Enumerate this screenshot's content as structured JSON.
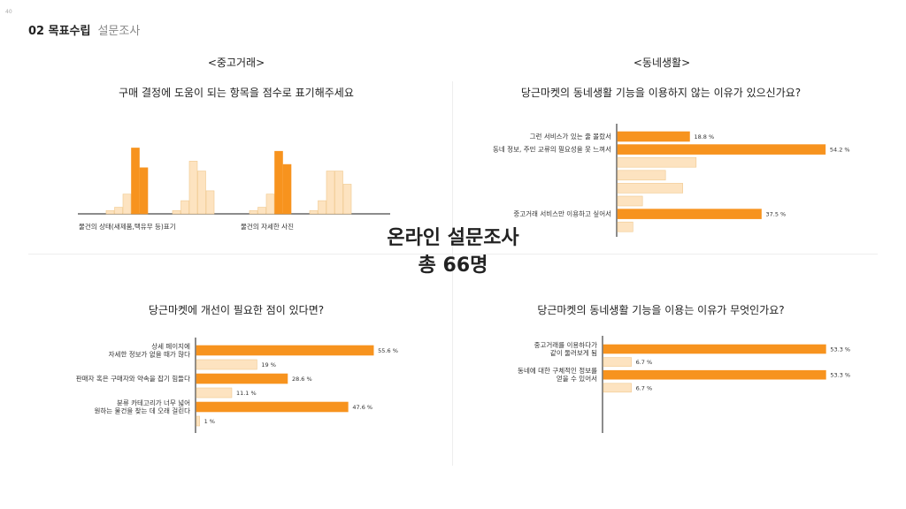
{
  "page_number": "40",
  "header": {
    "title": "02 목표수립",
    "subtitle": "설문조사"
  },
  "sections": {
    "left": "<중고거래>",
    "right": "<동네생활>"
  },
  "center": {
    "line1": "온라인 설문조사",
    "line2": "총 66명"
  },
  "colors": {
    "primary": "#f7931e",
    "light": "#fde3c0",
    "light_border": "#f0c88e",
    "axis": "#666666"
  },
  "chart_data": [
    {
      "type": "bar",
      "title": "구매 결정에 도움이 되는 항목을 점수로 표기해주세요",
      "categories": [
        "물건의 상태(새제품,택유무 등)표기",
        "",
        "물건의 자세한 사진",
        ""
      ],
      "series_values": [
        [
          1,
          2,
          6,
          20,
          14
        ],
        [
          1,
          4,
          16,
          13,
          7
        ],
        [
          1,
          2,
          6,
          19,
          15
        ],
        [
          1,
          4,
          13,
          13,
          9
        ]
      ],
      "highlight": [
        3,
        4
      ],
      "group_colors": [
        "primary",
        "light",
        "primary",
        "light"
      ],
      "ylim": [
        0,
        22
      ]
    },
    {
      "type": "bar",
      "orientation": "horizontal",
      "title": "당근마켓의 동네생활 기능을 이용하지 않는 이유가 있으신가요?",
      "rows": [
        {
          "label": "그런 서비스가 있는 줄 몰랐서",
          "value": 18.8,
          "value_label": "18.8 %",
          "highlight": true
        },
        {
          "label": "동네 정보, 주민 교류의 필요성을 못 느껴서",
          "value": 54.2,
          "value_label": "54.2 %",
          "highlight": true
        },
        {
          "label": "",
          "value": 20.5,
          "value_label": "",
          "highlight": false
        },
        {
          "label": "",
          "value": 12.5,
          "value_label": "",
          "highlight": false
        },
        {
          "label": "",
          "value": 17.0,
          "value_label": "",
          "highlight": false
        },
        {
          "label": "",
          "value": 6.5,
          "value_label": "",
          "highlight": false
        },
        {
          "label": "중고거래 서비스만 이용하고 싶어서",
          "value": 37.5,
          "value_label": "37.5 %",
          "highlight": true
        },
        {
          "label": "",
          "value": 4.0,
          "value_label": "",
          "highlight": false
        }
      ],
      "xlim": [
        0,
        60
      ]
    },
    {
      "type": "bar",
      "orientation": "horizontal",
      "title": "당근마켓에 개선이 필요한 점이 있다면?",
      "rows": [
        {
          "label": [
            "상세 페이지에",
            "자세한 정보가 없을 때가 많다"
          ],
          "value": 55.6,
          "value_label": "55.6 %",
          "highlight": true
        },
        {
          "label": [],
          "value": 19,
          "value_label": "19 %",
          "highlight": false
        },
        {
          "label": [
            "판매자 혹은 구매자와 약속을 잡기 힘들다"
          ],
          "value": 28.6,
          "value_label": "28.6 %",
          "highlight": true
        },
        {
          "label": [],
          "value": 11.1,
          "value_label": "11.1 %",
          "highlight": false
        },
        {
          "label": [
            "분류 카테고리가 너무 넓어",
            "원하는 물건을 찾는 데 오래 걸린다"
          ],
          "value": 47.6,
          "value_label": "47.6 %",
          "highlight": true
        },
        {
          "label": [],
          "value": 1,
          "value_label": "1 %",
          "highlight": false
        }
      ],
      "xlim": [
        0,
        60
      ]
    },
    {
      "type": "bar",
      "orientation": "horizontal",
      "title": "당근마켓의 동네생활 기능을 이용는 이유가 무엇인가요?",
      "rows": [
        {
          "label": [
            "중고거래를 이용하다가",
            "같이 둘러보게 됨"
          ],
          "value": 53.3,
          "value_label": "53.3 %",
          "highlight": true
        },
        {
          "label": [],
          "value": 6.7,
          "value_label": "6.7 %",
          "highlight": false
        },
        {
          "label": [
            "동네에 대한 구체적인 정보를",
            "얻을 수 있어서"
          ],
          "value": 53.3,
          "value_label": "53.3 %",
          "highlight": true
        },
        {
          "label": [],
          "value": 6.7,
          "value_label": "6.7 %",
          "highlight": false
        }
      ],
      "xlim": [
        0,
        60
      ]
    }
  ]
}
